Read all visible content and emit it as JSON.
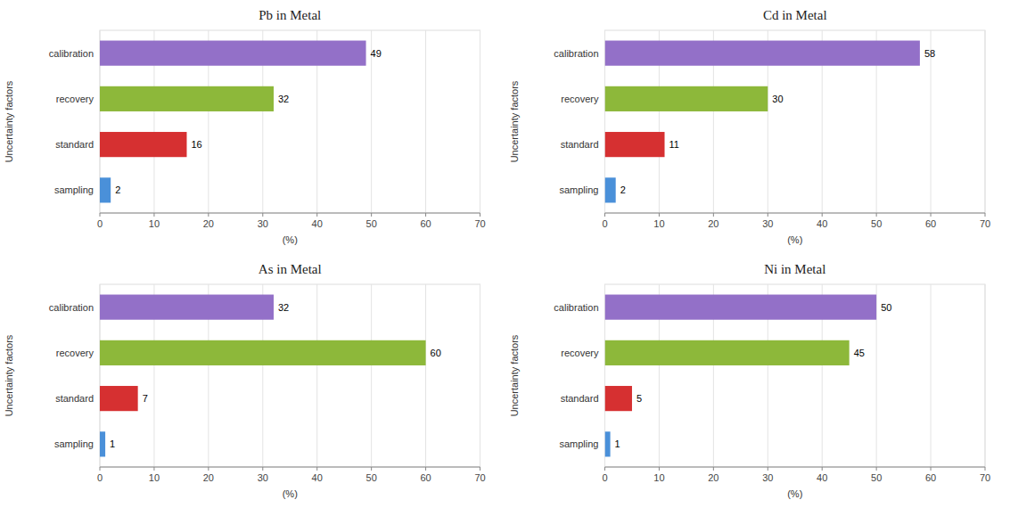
{
  "chart_data": [
    {
      "type": "bar",
      "orientation": "horizontal",
      "title": "Pb in Metal",
      "categories": [
        "calibration",
        "recovery",
        "standard",
        "sampling"
      ],
      "values": [
        49,
        32,
        16,
        2
      ],
      "colors": [
        "#9370c8",
        "#8db83a",
        "#d63031",
        "#4a90d9"
      ],
      "xlim": [
        0,
        70
      ],
      "xticks": [
        0,
        10,
        20,
        30,
        40,
        50,
        60,
        70
      ],
      "xlabel": "(%)",
      "ylabel": "Uncertainty factors",
      "grid": true,
      "data_labels": true
    },
    {
      "type": "bar",
      "orientation": "horizontal",
      "title": "Cd in Metal",
      "categories": [
        "calibration",
        "recovery",
        "standard",
        "sampling"
      ],
      "values": [
        58,
        30,
        11,
        2
      ],
      "colors": [
        "#9370c8",
        "#8db83a",
        "#d63031",
        "#4a90d9"
      ],
      "xlim": [
        0,
        70
      ],
      "xticks": [
        0,
        10,
        20,
        30,
        40,
        50,
        60,
        70
      ],
      "xlabel": "(%)",
      "ylabel": "Uncertainty factors",
      "grid": true,
      "data_labels": true
    },
    {
      "type": "bar",
      "orientation": "horizontal",
      "title": "As in Metal",
      "categories": [
        "calibration",
        "recovery",
        "standard",
        "sampling"
      ],
      "values": [
        32,
        60,
        7,
        1
      ],
      "colors": [
        "#9370c8",
        "#8db83a",
        "#d63031",
        "#4a90d9"
      ],
      "xlim": [
        0,
        70
      ],
      "xticks": [
        0,
        10,
        20,
        30,
        40,
        50,
        60,
        70
      ],
      "xlabel": "(%)",
      "ylabel": "Uncertainty factors",
      "grid": true,
      "data_labels": true
    },
    {
      "type": "bar",
      "orientation": "horizontal",
      "title": "Ni in Metal",
      "categories": [
        "calibration",
        "recovery",
        "standard",
        "sampling"
      ],
      "values": [
        50,
        45,
        5,
        1
      ],
      "colors": [
        "#9370c8",
        "#8db83a",
        "#d63031",
        "#4a90d9"
      ],
      "xlim": [
        0,
        70
      ],
      "xticks": [
        0,
        10,
        20,
        30,
        40,
        50,
        60,
        70
      ],
      "xlabel": "(%)",
      "ylabel": "Uncertainty factors",
      "grid": true,
      "data_labels": true
    }
  ]
}
